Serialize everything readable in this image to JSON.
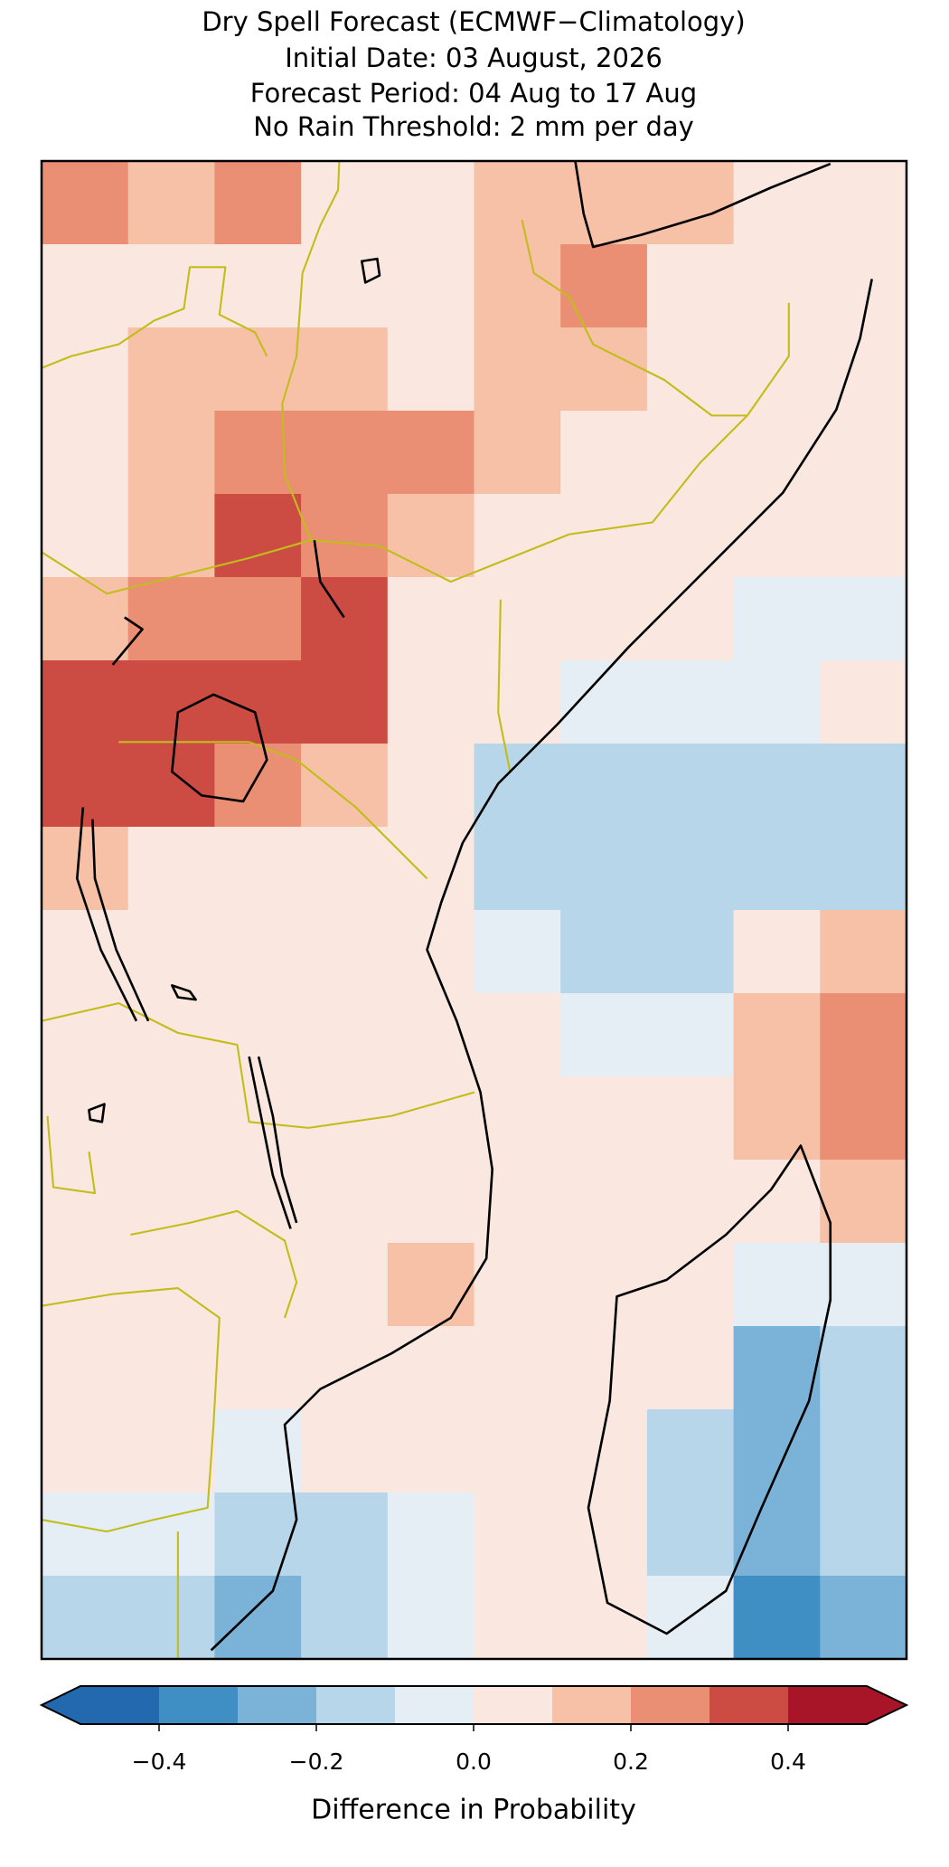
{
  "chart_data": {
    "type": "heatmap",
    "title": "Dry Spell Forecast (ECMWF−Climatology)",
    "subtitle": [
      "Initial Date: 03 August, 2026",
      "Forecast Period: 04 Aug to 17 Aug",
      "No Rain Threshold: 2 mm per day"
    ],
    "values": [
      [
        0.25,
        0.15,
        0.2,
        0.05,
        0.05,
        0.1,
        0.15,
        0.15,
        0.05,
        0.05
      ],
      [
        0.0,
        0.0,
        0.05,
        0.05,
        0.05,
        0.15,
        0.2,
        0.05,
        0.05,
        0.05
      ],
      [
        0.05,
        0.1,
        0.15,
        0.15,
        0.05,
        0.15,
        0.1,
        0.05,
        0.05,
        0.05
      ],
      [
        0.05,
        0.15,
        0.25,
        0.2,
        0.2,
        0.15,
        0.05,
        0.05,
        0.05,
        0.05
      ],
      [
        0.05,
        0.1,
        0.3,
        0.25,
        0.15,
        0.05,
        0.05,
        0.05,
        0.0,
        0.0
      ],
      [
        0.15,
        0.2,
        0.2,
        0.3,
        0.05,
        0.05,
        0.05,
        0.0,
        -0.1,
        -0.05
      ],
      [
        0.35,
        0.3,
        0.3,
        0.3,
        0.05,
        0.05,
        -0.1,
        -0.1,
        -0.05,
        0.0
      ],
      [
        0.3,
        0.3,
        0.2,
        0.1,
        0.05,
        -0.2,
        -0.2,
        -0.15,
        -0.2,
        -0.2
      ],
      [
        0.1,
        0.05,
        0.05,
        0.05,
        0.0,
        -0.15,
        -0.2,
        -0.15,
        -0.2,
        -0.2
      ],
      [
        0.05,
        0.05,
        0.05,
        0.0,
        0.0,
        -0.05,
        -0.2,
        -0.15,
        0.05,
        0.15
      ],
      [
        0.05,
        0.05,
        0.05,
        0.05,
        0.0,
        0.0,
        -0.1,
        -0.05,
        0.1,
        0.2
      ],
      [
        0.05,
        0.05,
        0.05,
        0.05,
        0.0,
        0.05,
        0.0,
        0.0,
        0.1,
        0.2
      ],
      [
        0.05,
        0.05,
        0.05,
        0.0,
        0.0,
        0.05,
        0.05,
        0.0,
        0.0,
        0.15
      ],
      [
        0.05,
        0.05,
        0.05,
        0.05,
        0.1,
        0.05,
        0.05,
        0.05,
        -0.1,
        -0.1
      ],
      [
        0.05,
        0.05,
        0.0,
        0.05,
        0.05,
        0.05,
        0.05,
        0.0,
        -0.25,
        -0.2
      ],
      [
        0.05,
        0.0,
        -0.05,
        0.0,
        0.05,
        0.05,
        0.0,
        -0.15,
        -0.3,
        -0.2
      ],
      [
        -0.1,
        -0.1,
        -0.15,
        -0.2,
        -0.1,
        0.0,
        0.0,
        -0.2,
        -0.3,
        -0.2
      ],
      [
        -0.15,
        -0.15,
        -0.25,
        -0.2,
        -0.1,
        0.0,
        0.0,
        -0.1,
        -0.4,
        -0.3
      ]
    ],
    "levels": [
      -0.5,
      -0.4,
      -0.3,
      -0.2,
      -0.1,
      0.0,
      0.1,
      0.2,
      0.3,
      0.4,
      0.5
    ],
    "colors": [
      "#2369b0",
      "#3f8ec4",
      "#7ab3d7",
      "#b8d6ea",
      "#e4eef4",
      "#fae8e0",
      "#f7c1a8",
      "#ea8e74",
      "#cc4c44",
      "#a81529"
    ],
    "extend": "both",
    "xticks": [
      {
        "value": -0.4,
        "label": "−0.4"
      },
      {
        "value": -0.2,
        "label": "−0.2"
      },
      {
        "value": 0.0,
        "label": "0.0"
      },
      {
        "value": 0.2,
        "label": "0.2"
      },
      {
        "value": 0.4,
        "label": "0.4"
      }
    ],
    "xlabel": "Difference in Probability"
  }
}
